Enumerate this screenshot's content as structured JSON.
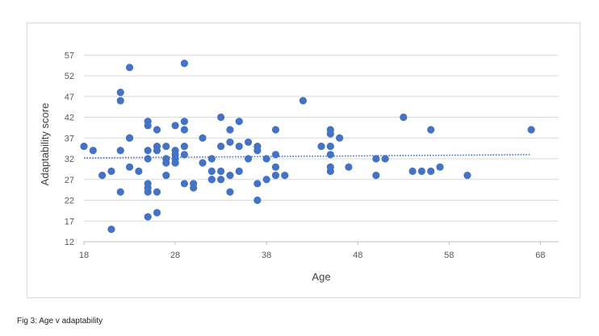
{
  "caption": "Fig 3: Age v adaptability",
  "chart_data": {
    "type": "scatter",
    "title": "",
    "xlabel": "Age",
    "ylabel": "Adaptability score",
    "xlim": [
      18,
      70
    ],
    "ylim": [
      12,
      59
    ],
    "xticks": [
      18,
      28,
      38,
      48,
      58,
      68
    ],
    "yticks": [
      12,
      17,
      22,
      27,
      32,
      37,
      42,
      47,
      52,
      57
    ],
    "grid": "horizontal",
    "legend": "none",
    "point_color": "#4472c4",
    "trendline": {
      "type": "linear",
      "style": "dotted",
      "color": "#4472c4",
      "x": [
        18,
        67
      ],
      "y": [
        32.2,
        33.0
      ]
    },
    "points": [
      [
        18,
        35
      ],
      [
        19,
        34
      ],
      [
        20,
        28
      ],
      [
        21,
        29
      ],
      [
        21,
        15
      ],
      [
        22,
        48
      ],
      [
        22,
        46
      ],
      [
        22,
        34
      ],
      [
        22,
        24
      ],
      [
        23,
        54
      ],
      [
        23,
        37
      ],
      [
        23,
        37
      ],
      [
        23,
        30
      ],
      [
        24,
        29
      ],
      [
        25,
        41
      ],
      [
        25,
        40
      ],
      [
        25,
        34
      ],
      [
        25,
        32
      ],
      [
        25,
        26
      ],
      [
        25,
        25
      ],
      [
        25,
        24
      ],
      [
        25,
        18
      ],
      [
        26,
        39
      ],
      [
        26,
        35
      ],
      [
        26,
        34
      ],
      [
        26,
        24
      ],
      [
        26,
        19
      ],
      [
        27,
        35
      ],
      [
        27,
        32
      ],
      [
        27,
        31
      ],
      [
        27,
        28
      ],
      [
        28,
        40
      ],
      [
        28,
        34
      ],
      [
        28,
        33
      ],
      [
        28,
        32
      ],
      [
        28,
        31
      ],
      [
        29,
        55
      ],
      [
        29,
        41
      ],
      [
        29,
        39
      ],
      [
        29,
        35
      ],
      [
        29,
        33
      ],
      [
        29,
        26
      ],
      [
        30,
        26
      ],
      [
        30,
        25
      ],
      [
        31,
        37
      ],
      [
        31,
        31
      ],
      [
        32,
        32
      ],
      [
        32,
        29
      ],
      [
        32,
        27
      ],
      [
        32,
        27
      ],
      [
        33,
        42
      ],
      [
        33,
        35
      ],
      [
        33,
        29
      ],
      [
        33,
        27
      ],
      [
        34,
        39
      ],
      [
        34,
        36
      ],
      [
        34,
        28
      ],
      [
        34,
        24
      ],
      [
        35,
        41
      ],
      [
        35,
        35
      ],
      [
        35,
        29
      ],
      [
        36,
        36
      ],
      [
        36,
        32
      ],
      [
        37,
        35
      ],
      [
        37,
        34
      ],
      [
        37,
        26
      ],
      [
        37,
        22
      ],
      [
        38,
        32
      ],
      [
        38,
        27
      ],
      [
        39,
        39
      ],
      [
        39,
        33
      ],
      [
        39,
        30
      ],
      [
        39,
        28
      ],
      [
        40,
        28
      ],
      [
        42,
        46
      ],
      [
        44,
        35
      ],
      [
        45,
        39
      ],
      [
        45,
        38
      ],
      [
        45,
        35
      ],
      [
        45,
        33
      ],
      [
        45,
        30
      ],
      [
        45,
        29
      ],
      [
        46,
        37
      ],
      [
        47,
        30
      ],
      [
        50,
        32
      ],
      [
        50,
        28
      ],
      [
        51,
        32
      ],
      [
        53,
        42
      ],
      [
        54,
        29
      ],
      [
        55,
        29
      ],
      [
        56,
        39
      ],
      [
        56,
        29
      ],
      [
        57,
        30
      ],
      [
        60,
        28
      ],
      [
        67,
        39
      ]
    ]
  }
}
